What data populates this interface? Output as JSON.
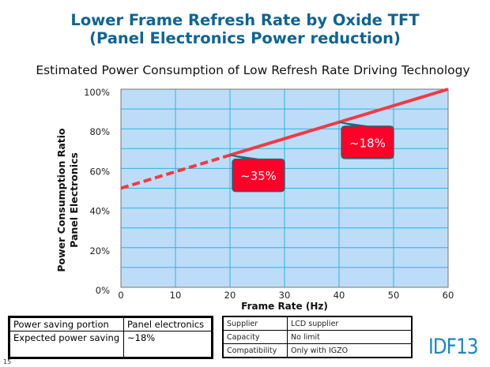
{
  "header": {
    "title_line1": "Lower Frame Refresh Rate by Oxide TFT",
    "title_line2": "(Panel Electronics Power reduction)",
    "subtitle": "Estimated Power Consumption of Low Refresh Rate Driving Technology"
  },
  "chart_data": {
    "type": "line",
    "title": "Estimated Power Consumption of Low Refresh Rate Driving Technology",
    "xlabel": "Frame Rate (Hz)",
    "ylabel_line1": "Power Consumption Ratio",
    "ylabel_line2": "Panel Electronics",
    "xlim": [
      0,
      60
    ],
    "ylim": [
      0,
      100
    ],
    "x_ticks": [
      "0",
      "10",
      "20",
      "30",
      "40",
      "50",
      "60"
    ],
    "y_ticks": [
      "0%",
      "20%",
      "40%",
      "60%",
      "80%",
      "100%"
    ],
    "grid": true,
    "series": [
      {
        "style": "dashed",
        "x": [
          0,
          20
        ],
        "y": [
          50,
          66.7
        ]
      },
      {
        "style": "solid",
        "x": [
          20,
          60
        ],
        "y": [
          66.7,
          100
        ]
      }
    ],
    "annotations": [
      {
        "text": "~35%",
        "x": 20,
        "y": 66.7
      },
      {
        "text": "~18%",
        "x": 40,
        "y": 83.3
      }
    ],
    "colors": {
      "plot_bg": "#bddcf7",
      "grid": "#2db4e6",
      "line": "#f23a45",
      "callout": "#ff0028",
      "callout_border": "#1d6a7a"
    }
  },
  "tables": {
    "left": [
      [
        "Power saving portion",
        "Panel electronics"
      ],
      [
        "Expected power saving",
        "~18%"
      ]
    ],
    "right": [
      [
        "Supplier",
        "LCD supplier"
      ],
      [
        "Capacity",
        "No limit"
      ],
      [
        "Compatibility",
        "Only with IGZO"
      ]
    ]
  },
  "footer": {
    "logo": "IDF13",
    "page_number": "15"
  }
}
